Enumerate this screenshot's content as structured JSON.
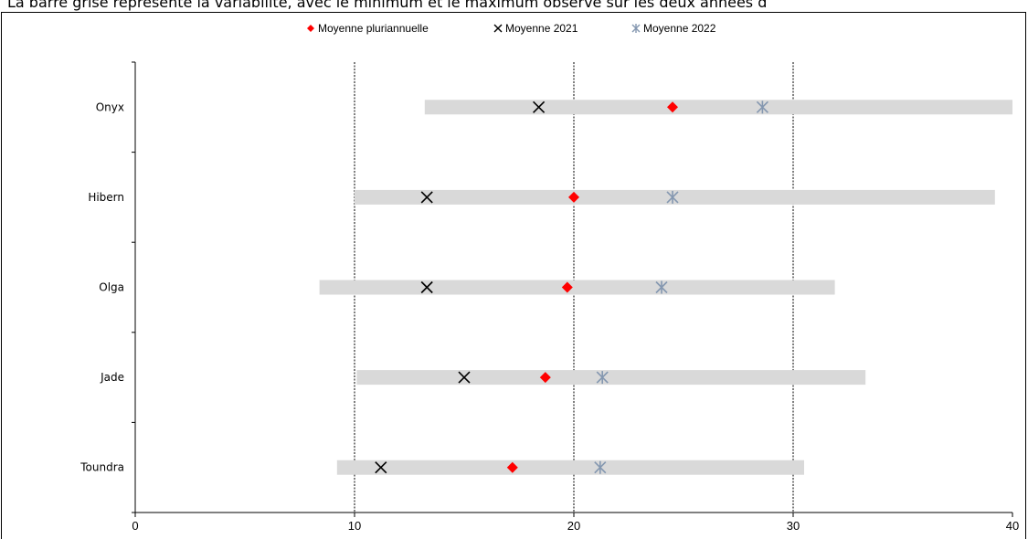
{
  "caption": "La barre grise représente la variabilité, avec le minimum et le maximum observé sur les deux années d",
  "chart_data": {
    "type": "range-dot",
    "title": "",
    "xlabel": "",
    "ylabel": "",
    "xlim": [
      0,
      40
    ],
    "xticks": [
      "0",
      "10",
      "20",
      "30",
      "40"
    ],
    "grid_x": [
      10,
      20,
      30
    ],
    "legend_position": "top-center",
    "categories": [
      "Onyx",
      "Hibern",
      "Olga",
      "Jade",
      "Toundra"
    ],
    "range": {
      "name": "",
      "color": "#d9d9d9",
      "min": [
        13.2,
        10.0,
        8.4,
        10.1,
        9.2
      ],
      "max": [
        40.0,
        39.2,
        31.9,
        33.3,
        30.5
      ]
    },
    "series": [
      {
        "name": "Moyenne pluriannuelle",
        "marker": "diamond",
        "color": "#ff0000",
        "values": [
          24.5,
          20.0,
          19.7,
          18.7,
          17.2
        ]
      },
      {
        "name": "Moyenne 2021",
        "marker": "x",
        "color": "#000000",
        "values": [
          18.4,
          13.3,
          13.3,
          15.0,
          11.2
        ]
      },
      {
        "name": "Moyenne 2022",
        "marker": "star",
        "color": "#8497b0",
        "values": [
          28.6,
          24.5,
          24.0,
          21.3,
          21.2
        ]
      }
    ]
  }
}
